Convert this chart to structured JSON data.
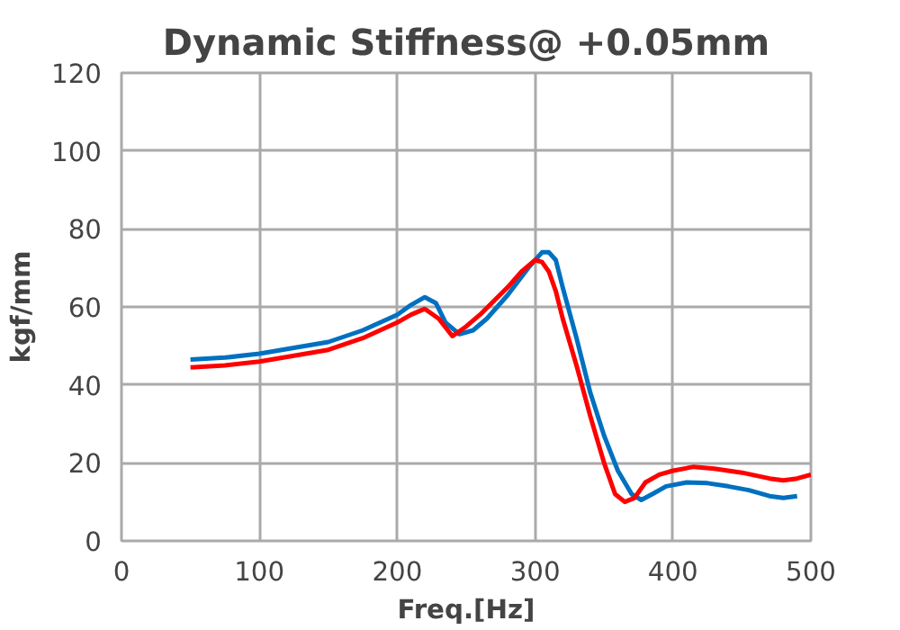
{
  "chart_data": {
    "type": "line",
    "title": "Dynamic Stiffness@ +0.05mm",
    "xlabel": "Freq.[Hz]",
    "ylabel": "kgf/mm",
    "xlim": [
      0,
      500
    ],
    "ylim": [
      0,
      120
    ],
    "xticks": [
      0,
      100,
      200,
      300,
      400,
      500
    ],
    "yticks": [
      0,
      20,
      40,
      60,
      80,
      100,
      120
    ],
    "grid": true,
    "marker": "none",
    "line_style": "solid",
    "series": [
      {
        "color": "#0070c0",
        "x": [
          50,
          75,
          100,
          125,
          150,
          175,
          200,
          210,
          220,
          228,
          235,
          245,
          255,
          265,
          280,
          295,
          305,
          310,
          315,
          320,
          330,
          340,
          350,
          360,
          370,
          377,
          385,
          395,
          410,
          425,
          440,
          455,
          470,
          480,
          490
        ],
        "values": [
          46.5,
          47,
          48,
          49.5,
          51,
          54,
          58,
          60.5,
          62.5,
          61,
          56,
          53,
          54,
          57,
          63,
          70,
          74,
          74,
          72,
          65,
          52,
          38,
          27,
          18,
          12,
          10.5,
          12,
          14,
          15,
          14.8,
          14,
          13,
          11.5,
          11,
          11.5
        ]
      },
      {
        "color": "#ff0000",
        "x": [
          50,
          75,
          100,
          125,
          150,
          175,
          200,
          210,
          220,
          230,
          240,
          250,
          260,
          270,
          280,
          290,
          300,
          305,
          310,
          315,
          320,
          330,
          340,
          350,
          358,
          365,
          372,
          380,
          390,
          400,
          415,
          430,
          450,
          470,
          480,
          490,
          500
        ],
        "values": [
          44.5,
          45,
          46,
          47.5,
          49,
          52,
          56,
          58,
          59.5,
          57,
          52.5,
          55,
          58,
          61.5,
          65,
          69,
          72,
          71.5,
          69,
          64,
          57,
          45,
          32,
          20,
          12,
          10,
          11,
          15,
          17,
          18,
          19,
          18.5,
          17.5,
          16,
          15.5,
          16,
          17
        ]
      }
    ]
  }
}
